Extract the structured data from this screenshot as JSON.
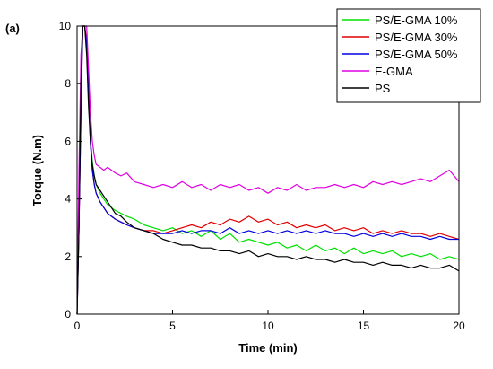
{
  "chart_data": {
    "type": "line",
    "panel_label": "(a)",
    "xlabel": "Time (min)",
    "ylabel": "Torque (N.m)",
    "xlim": [
      0,
      20
    ],
    "ylim": [
      0,
      10
    ],
    "xticks": [
      0,
      5,
      10,
      15,
      20
    ],
    "yticks": [
      0,
      2,
      4,
      6,
      8,
      10
    ],
    "grid": false,
    "legend_position": "top-right",
    "series": [
      {
        "name": "PS/E-GMA 10%",
        "color": "#00e000",
        "x": [
          0,
          0.1,
          0.2,
          0.3,
          0.4,
          0.5,
          0.6,
          0.7,
          0.8,
          0.9,
          1.0,
          1.2,
          1.4,
          1.6,
          1.8,
          2.0,
          2.3,
          2.6,
          3.0,
          3.5,
          4.0,
          4.5,
          5.0,
          5.5,
          6.0,
          6.5,
          7.0,
          7.5,
          8.0,
          8.5,
          9.0,
          9.5,
          10.0,
          10.5,
          11.0,
          11.5,
          12.0,
          12.5,
          13.0,
          13.5,
          14.0,
          14.5,
          15.0,
          15.5,
          16.0,
          16.5,
          17.0,
          17.5,
          18.0,
          18.5,
          19.0,
          19.5,
          20.0
        ],
        "y": [
          0,
          4,
          8,
          10,
          10,
          9.2,
          7.5,
          6.1,
          5.3,
          4.8,
          4.5,
          4.2,
          4.0,
          3.8,
          3.7,
          3.6,
          3.5,
          3.4,
          3.3,
          3.1,
          3.0,
          2.9,
          3.0,
          2.8,
          2.9,
          2.7,
          2.9,
          2.6,
          2.8,
          2.5,
          2.6,
          2.5,
          2.4,
          2.5,
          2.3,
          2.4,
          2.2,
          2.4,
          2.2,
          2.3,
          2.1,
          2.3,
          2.1,
          2.2,
          2.1,
          2.2,
          2.0,
          2.1,
          2.0,
          2.1,
          1.9,
          2.0,
          1.9
        ]
      },
      {
        "name": "PS/E-GMA 30%",
        "color": "#e00000",
        "x": [
          0,
          0.1,
          0.2,
          0.3,
          0.4,
          0.5,
          0.6,
          0.7,
          0.8,
          0.9,
          1.0,
          1.2,
          1.4,
          1.6,
          1.8,
          2.0,
          2.3,
          2.6,
          3.0,
          3.5,
          4.0,
          4.5,
          5.0,
          5.5,
          6.0,
          6.5,
          7.0,
          7.5,
          8.0,
          8.5,
          9.0,
          9.5,
          10.0,
          10.5,
          11.0,
          11.5,
          12.0,
          12.5,
          13.0,
          13.5,
          14.0,
          14.5,
          15.0,
          15.5,
          16.0,
          16.5,
          17.0,
          17.5,
          18.0,
          18.5,
          19.0,
          19.5,
          20.0
        ],
        "y": [
          0,
          3,
          7,
          10,
          10,
          9.5,
          7.8,
          6.0,
          5.0,
          4.5,
          4.2,
          3.9,
          3.7,
          3.5,
          3.4,
          3.3,
          3.2,
          3.1,
          3.0,
          2.9,
          2.9,
          2.8,
          2.9,
          3.0,
          3.1,
          3.0,
          3.2,
          3.1,
          3.3,
          3.2,
          3.4,
          3.2,
          3.3,
          3.1,
          3.2,
          3.0,
          3.1,
          3.0,
          3.1,
          2.9,
          3.0,
          2.9,
          3.0,
          2.8,
          2.9,
          2.8,
          2.9,
          2.8,
          2.8,
          2.7,
          2.8,
          2.7,
          2.6
        ]
      },
      {
        "name": "PS/E-GMA 50%",
        "color": "#0000e0",
        "x": [
          0,
          0.1,
          0.2,
          0.3,
          0.4,
          0.5,
          0.6,
          0.7,
          0.8,
          0.9,
          1.0,
          1.2,
          1.4,
          1.6,
          1.8,
          2.0,
          2.3,
          2.6,
          3.0,
          3.5,
          4.0,
          4.5,
          5.0,
          5.5,
          6.0,
          6.5,
          7.0,
          7.5,
          8.0,
          8.5,
          9.0,
          9.5,
          10.0,
          10.5,
          11.0,
          11.5,
          12.0,
          12.5,
          13.0,
          13.5,
          14.0,
          14.5,
          15.0,
          15.5,
          16.0,
          16.5,
          17.0,
          17.5,
          18.0,
          18.5,
          19.0,
          19.5,
          20.0
        ],
        "y": [
          0,
          3,
          7,
          10,
          10,
          9.4,
          7.6,
          5.9,
          5.0,
          4.5,
          4.2,
          3.9,
          3.7,
          3.5,
          3.4,
          3.3,
          3.2,
          3.1,
          3.0,
          2.9,
          2.8,
          2.8,
          2.8,
          2.9,
          2.8,
          2.9,
          2.9,
          2.8,
          3.0,
          2.8,
          2.9,
          2.8,
          2.9,
          2.8,
          2.9,
          2.8,
          2.9,
          2.8,
          2.9,
          2.8,
          2.8,
          2.7,
          2.8,
          2.7,
          2.8,
          2.7,
          2.8,
          2.7,
          2.7,
          2.6,
          2.7,
          2.6,
          2.6
        ]
      },
      {
        "name": "E-GMA",
        "color": "#e000e0",
        "x": [
          0,
          0.1,
          0.2,
          0.3,
          0.4,
          0.5,
          0.6,
          0.7,
          0.8,
          0.9,
          1.0,
          1.2,
          1.4,
          1.6,
          1.8,
          2.0,
          2.3,
          2.6,
          3.0,
          3.5,
          4.0,
          4.5,
          5.0,
          5.5,
          6.0,
          6.5,
          7.0,
          7.5,
          8.0,
          8.5,
          9.0,
          9.5,
          10.0,
          10.5,
          11.0,
          11.5,
          12.0,
          12.5,
          13.0,
          13.5,
          14.0,
          14.5,
          15.0,
          15.5,
          16.0,
          16.5,
          17.0,
          17.5,
          18.0,
          18.5,
          19.0,
          19.5,
          20.0
        ],
        "y": [
          0,
          5,
          9,
          10,
          10,
          10,
          8.5,
          7.0,
          6.0,
          5.5,
          5.2,
          5.1,
          5.0,
          5.1,
          5.0,
          4.9,
          4.8,
          4.9,
          4.6,
          4.5,
          4.4,
          4.5,
          4.4,
          4.6,
          4.4,
          4.5,
          4.3,
          4.5,
          4.4,
          4.5,
          4.3,
          4.4,
          4.2,
          4.4,
          4.3,
          4.5,
          4.3,
          4.4,
          4.4,
          4.5,
          4.4,
          4.5,
          4.4,
          4.6,
          4.5,
          4.6,
          4.5,
          4.6,
          4.7,
          4.6,
          4.8,
          5.0,
          4.6
        ]
      },
      {
        "name": "PS",
        "color": "#000000",
        "x": [
          0,
          0.1,
          0.2,
          0.3,
          0.4,
          0.5,
          0.6,
          0.7,
          0.8,
          0.9,
          1.0,
          1.2,
          1.4,
          1.6,
          1.8,
          2.0,
          2.3,
          2.6,
          3.0,
          3.5,
          4.0,
          4.5,
          5.0,
          5.5,
          6.0,
          6.5,
          7.0,
          7.5,
          8.0,
          8.5,
          9.0,
          9.5,
          10.0,
          10.5,
          11.0,
          11.5,
          12.0,
          12.5,
          13.0,
          13.5,
          14.0,
          14.5,
          15.0,
          15.5,
          16.0,
          16.5,
          17.0,
          17.5,
          18.0,
          18.5,
          19.0,
          19.5,
          20.0
        ],
        "y": [
          0,
          3,
          8,
          10,
          10,
          9.0,
          7.2,
          6.0,
          5.2,
          4.8,
          4.5,
          4.3,
          4.1,
          3.9,
          3.7,
          3.5,
          3.4,
          3.2,
          3.0,
          2.9,
          2.8,
          2.6,
          2.5,
          2.4,
          2.4,
          2.3,
          2.3,
          2.2,
          2.2,
          2.1,
          2.2,
          2.0,
          2.1,
          2.0,
          2.0,
          1.9,
          2.0,
          1.9,
          1.9,
          1.8,
          1.9,
          1.8,
          1.8,
          1.7,
          1.8,
          1.7,
          1.7,
          1.6,
          1.7,
          1.6,
          1.6,
          1.7,
          1.5
        ]
      }
    ]
  }
}
